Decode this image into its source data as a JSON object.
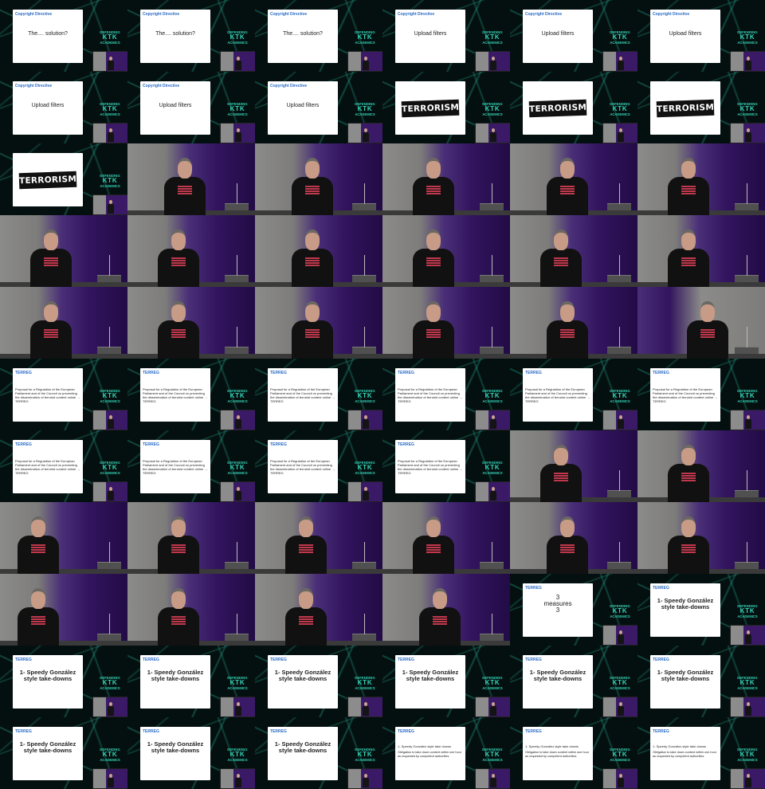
{
  "labels": {
    "copyright_directive": "Copyright Directive",
    "terreg": "TERREG",
    "the_solution": "The.... solution?",
    "upload_filters": "Upload filters",
    "terrorism": "TERRORISM",
    "proposal": "Proposal for a Regulation of the European Parliament and of the Council on preventing the dissemination of terrorist content online → TERREG",
    "three_measures_line1": "3",
    "three_measures_line2": "measures",
    "three_measures_line3": "3",
    "speedy": "1- Speedy González style take-downs",
    "speedy_detail_title": "1- Speedy González style take downs",
    "speedy_detail_body": "Obligation to take down content within one hour as requested by competent authorities"
  },
  "conference_logo": {
    "line1": "DEFENDING",
    "line2": "KTK",
    "line3": "ACADEMICS"
  },
  "colors": {
    "slide_header": "#2b6cc4",
    "network_lines": "#28aa96",
    "stage_purple": "#32145e",
    "stage_wall": "#8b8b89"
  },
  "frames": [
    {
      "kind": "slide",
      "header": "copyright_directive",
      "title": "the_solution"
    },
    {
      "kind": "slide",
      "header": "copyright_directive",
      "title": "the_solution"
    },
    {
      "kind": "slide",
      "header": "copyright_directive",
      "title": "the_solution"
    },
    {
      "kind": "slide",
      "header": "copyright_directive",
      "title": "upload_filters"
    },
    {
      "kind": "slide",
      "header": "copyright_directive",
      "title": "upload_filters"
    },
    {
      "kind": "slide",
      "header": "copyright_directive",
      "title": "upload_filters"
    },
    {
      "kind": "slide",
      "header": "copyright_directive",
      "title": "upload_filters"
    },
    {
      "kind": "slide",
      "header": "copyright_directive",
      "title": "upload_filters"
    },
    {
      "kind": "slide",
      "header": "copyright_directive",
      "title": "upload_filters"
    },
    {
      "kind": "terrorism"
    },
    {
      "kind": "terrorism"
    },
    {
      "kind": "terrorism"
    },
    {
      "kind": "terrorism"
    },
    {
      "kind": "cam",
      "pos": 0.45
    },
    {
      "kind": "cam",
      "pos": 0.45
    },
    {
      "kind": "cam",
      "pos": 0.4
    },
    {
      "kind": "cam",
      "pos": 0.45
    },
    {
      "kind": "cam",
      "pos": 0.4
    },
    {
      "kind": "cam",
      "pos": 0.4
    },
    {
      "kind": "cam",
      "pos": 0.4
    },
    {
      "kind": "cam",
      "pos": 0.45
    },
    {
      "kind": "cam",
      "pos": 0.4
    },
    {
      "kind": "cam",
      "pos": 0.4
    },
    {
      "kind": "cam",
      "pos": 0.4
    },
    {
      "kind": "cam",
      "pos": 0.4
    },
    {
      "kind": "cam",
      "pos": 0.4
    },
    {
      "kind": "cam",
      "pos": 0.45
    },
    {
      "kind": "cam",
      "pos": 0.4
    },
    {
      "kind": "cam",
      "pos": 0.45
    },
    {
      "kind": "cam",
      "pos": 0.55,
      "wall_right": true
    },
    {
      "kind": "slide",
      "header": "terreg",
      "body": "proposal"
    },
    {
      "kind": "slide",
      "header": "terreg",
      "body": "proposal"
    },
    {
      "kind": "slide",
      "header": "terreg",
      "body": "proposal"
    },
    {
      "kind": "slide",
      "header": "terreg",
      "body": "proposal"
    },
    {
      "kind": "slide",
      "header": "terreg",
      "body": "proposal"
    },
    {
      "kind": "slide",
      "header": "terreg",
      "body": "proposal"
    },
    {
      "kind": "slide",
      "header": "terreg",
      "body": "proposal"
    },
    {
      "kind": "slide",
      "header": "terreg",
      "body": "proposal"
    },
    {
      "kind": "slide",
      "header": "terreg",
      "body": "proposal"
    },
    {
      "kind": "slide",
      "header": "terreg",
      "body": "proposal"
    },
    {
      "kind": "cam",
      "pos": 0.4
    },
    {
      "kind": "cam",
      "pos": 0.4
    },
    {
      "kind": "cam",
      "pos": 0.3
    },
    {
      "kind": "cam",
      "pos": 0.4
    },
    {
      "kind": "cam",
      "pos": 0.4
    },
    {
      "kind": "cam",
      "pos": 0.4
    },
    {
      "kind": "cam",
      "pos": 0.45
    },
    {
      "kind": "cam",
      "pos": 0.4
    },
    {
      "kind": "cam",
      "pos": 0.3
    },
    {
      "kind": "cam",
      "pos": 0.4
    },
    {
      "kind": "cam",
      "pos": 0.4
    },
    {
      "kind": "cam",
      "pos": 0.45
    },
    {
      "kind": "measures",
      "header": "terreg"
    },
    {
      "kind": "slide",
      "header": "terreg",
      "title": "speedy",
      "big": true
    },
    {
      "kind": "slide",
      "header": "terreg",
      "title": "speedy",
      "big": true
    },
    {
      "kind": "slide",
      "header": "terreg",
      "title": "speedy",
      "big": true
    },
    {
      "kind": "slide",
      "header": "terreg",
      "title": "speedy",
      "big": true
    },
    {
      "kind": "slide",
      "header": "terreg",
      "title": "speedy",
      "big": true
    },
    {
      "kind": "slide",
      "header": "terreg",
      "title": "speedy",
      "big": true
    },
    {
      "kind": "slide",
      "header": "terreg",
      "title": "speedy",
      "big": true
    },
    {
      "kind": "slide",
      "header": "terreg",
      "title": "speedy",
      "big": true
    },
    {
      "kind": "slide",
      "header": "terreg",
      "title": "speedy",
      "big": true
    },
    {
      "kind": "slide",
      "header": "terreg",
      "title": "speedy",
      "big": true
    },
    {
      "kind": "detail",
      "header": "terreg"
    },
    {
      "kind": "detail",
      "header": "terreg"
    },
    {
      "kind": "detail",
      "header": "terreg"
    }
  ]
}
